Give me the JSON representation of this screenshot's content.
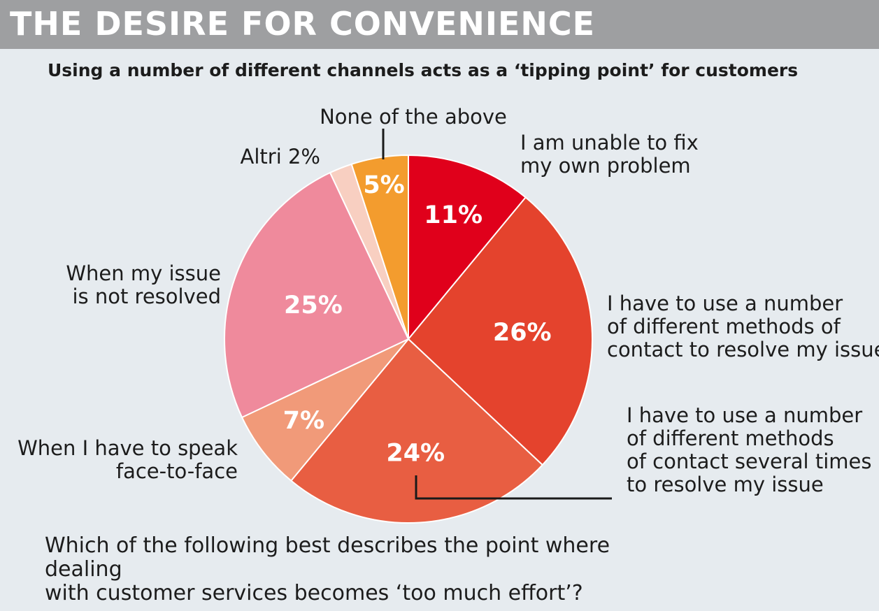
{
  "header": {
    "title": "THE DESIRE FOR CONVENIENCE"
  },
  "subtitle": "Using a number of different channels acts as a ‘tipping point’ for customers",
  "question": {
    "line1": "Which of the following best describes the point where dealing",
    "line2": "with customer services becomes ‘too much effort’?"
  },
  "chart_data": {
    "type": "pie",
    "title": "THE DESIRE FOR CONVENIENCE",
    "subtitle": "Using a number of different channels acts as a ‘tipping point’ for customers",
    "slices": [
      {
        "label_lines": [
          "I am unable to fix",
          "my own problem"
        ],
        "value": 11,
        "value_label": "11%",
        "color": "#e0001b"
      },
      {
        "label_lines": [
          "I have to use a number",
          "of different methods of",
          "contact to resolve my issue"
        ],
        "value": 26,
        "value_label": "26%",
        "color": "#e4432d"
      },
      {
        "label_lines": [
          "I have to use a number",
          "of different methods",
          "of contact several times",
          "to resolve my issue"
        ],
        "value": 24,
        "value_label": "24%",
        "color": "#e85e42"
      },
      {
        "label_lines": [
          "When I have to speak",
          "face-to-face"
        ],
        "value": 7,
        "value_label": "7%",
        "color": "#f19a79"
      },
      {
        "label_lines": [
          "When my issue",
          "is not resolved"
        ],
        "value": 25,
        "value_label": "25%",
        "color": "#ef8a9c"
      },
      {
        "label_lines": [
          "Altri 2%"
        ],
        "value": 2,
        "value_label": "",
        "color": "#f8cfc1"
      },
      {
        "label_lines": [
          "None of the above"
        ],
        "value": 5,
        "value_label": "5%",
        "color": "#f39c2e"
      }
    ],
    "start": "12 o'clock",
    "direction": "clockwise"
  }
}
